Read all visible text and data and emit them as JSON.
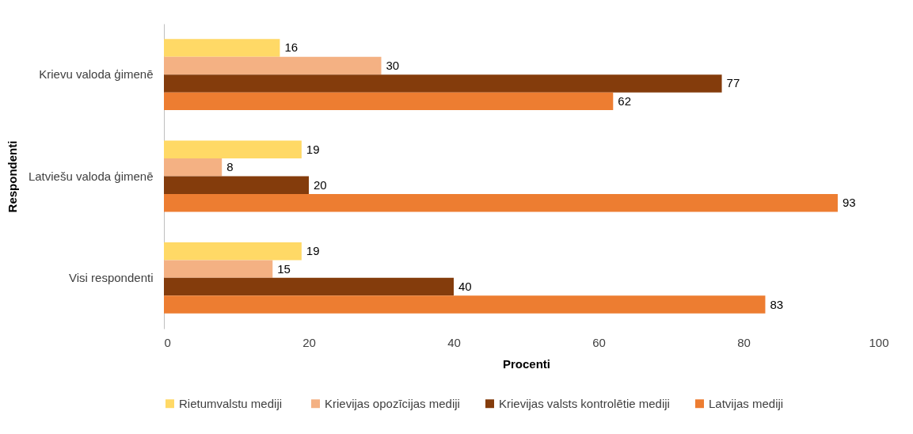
{
  "chart_data": {
    "type": "bar",
    "orientation": "horizontal",
    "xlabel": "Procenti",
    "ylabel": "Respondenti",
    "categories": [
      "Krievu valoda ģimenē",
      "Latviešu valoda ģimenē",
      "Visi respondenti"
    ],
    "series": [
      {
        "name": "Rietumvalstu  mediji",
        "color": "#ffd966",
        "values": [
          16,
          19,
          19
        ]
      },
      {
        "name": "Krievijas opozīcijas mediji",
        "color": "#f4b183",
        "values": [
          30,
          8,
          15
        ]
      },
      {
        "name": "Krievijas valsts kontrolētie mediji",
        "color": "#843c0c",
        "values": [
          77,
          20,
          40
        ]
      },
      {
        "name": "Latvijas mediji",
        "color": "#ed7d31",
        "values": [
          62,
          93,
          83
        ]
      }
    ],
    "xlim": [
      0,
      100
    ],
    "xticks": [
      0,
      20,
      40,
      60,
      80,
      100
    ],
    "grid": false,
    "legend": "bottom",
    "data_labels": true
  }
}
